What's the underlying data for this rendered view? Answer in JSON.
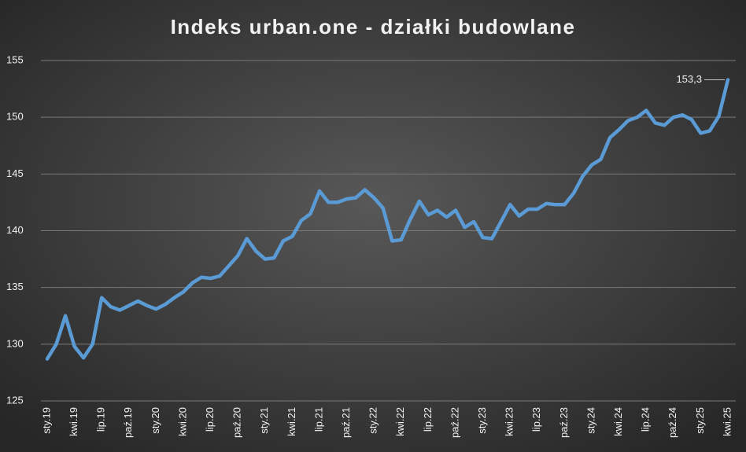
{
  "chart_data": {
    "type": "line",
    "title": "Indeks urban.one - działki budowlane",
    "categories": [
      "sty.19",
      null,
      null,
      "kwi.19",
      null,
      null,
      "lip.19",
      null,
      null,
      "paź.19",
      null,
      null,
      "sty.20",
      null,
      null,
      "kwi.20",
      null,
      null,
      "lip.20",
      null,
      null,
      "paź.20",
      null,
      null,
      "sty.21",
      null,
      null,
      "kwi.21",
      null,
      null,
      "lip.21",
      null,
      null,
      "paź.21",
      null,
      null,
      "sty.22",
      null,
      null,
      "kwi.22",
      null,
      null,
      "lip.22",
      null,
      null,
      "paź.22",
      null,
      null,
      "sty.23",
      null,
      null,
      "kwi.23",
      null,
      null,
      "lip.23",
      null,
      null,
      "paź.23",
      null,
      null,
      "sty.24",
      null,
      null,
      "kwi.24",
      null,
      null,
      "lip.24",
      null,
      null,
      "paź.24",
      null,
      null,
      "sty.25",
      null,
      null,
      "kwi.25"
    ],
    "values": [
      128.7,
      130.0,
      132.5,
      129.8,
      128.8,
      130.0,
      134.1,
      133.3,
      133.0,
      133.4,
      133.8,
      133.4,
      133.1,
      133.5,
      134.1,
      134.6,
      135.4,
      135.9,
      135.8,
      136.0,
      136.9,
      137.8,
      139.3,
      138.2,
      137.5,
      137.6,
      139.1,
      139.5,
      140.9,
      141.5,
      143.5,
      142.5,
      142.5,
      142.8,
      142.9,
      143.6,
      142.9,
      142.0,
      139.1,
      139.2,
      141.0,
      142.6,
      141.4,
      141.8,
      141.2,
      141.8,
      140.3,
      140.8,
      139.4,
      139.3,
      140.8,
      142.3,
      141.3,
      141.9,
      141.9,
      142.4,
      142.3,
      142.3,
      143.3,
      144.8,
      145.8,
      146.3,
      148.2,
      148.9,
      149.7,
      150.0,
      150.6,
      149.5,
      149.3,
      150.0,
      150.2,
      149.8,
      148.6,
      148.8,
      150.1,
      153.3
    ],
    "value_labels": [
      null,
      null,
      null,
      null,
      null,
      null,
      null,
      null,
      null,
      null,
      null,
      null,
      null,
      null,
      null,
      null,
      null,
      null,
      null,
      null,
      null,
      null,
      null,
      null,
      null,
      null,
      null,
      null,
      null,
      null,
      null,
      null,
      null,
      null,
      null,
      null,
      null,
      null,
      null,
      null,
      null,
      null,
      null,
      null,
      null,
      null,
      null,
      null,
      null,
      null,
      null,
      null,
      null,
      null,
      null,
      null,
      null,
      null,
      null,
      null,
      null,
      null,
      null,
      null,
      null,
      null,
      null,
      null,
      null,
      null,
      null,
      null,
      null,
      null,
      null,
      "153,3"
    ],
    "color": "#5b9bd5",
    "ylim": [
      125,
      155
    ],
    "yticks": [
      125,
      130,
      135,
      140,
      145,
      150,
      155
    ],
    "grid": true
  }
}
